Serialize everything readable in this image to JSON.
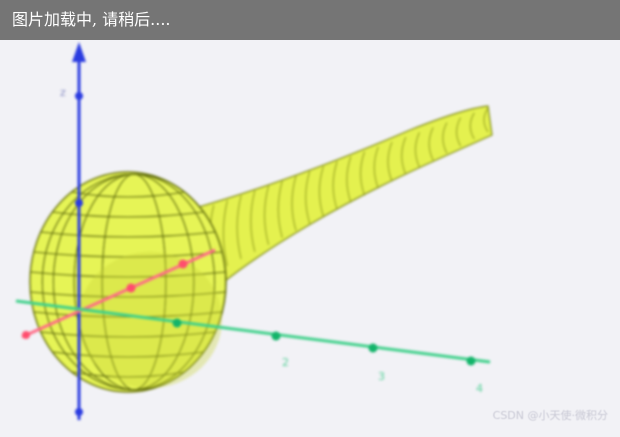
{
  "banner": {
    "text": "图片加载中, 请稍后...."
  },
  "axes": {
    "x_color": "#ff6680",
    "y_color": "#33cc77",
    "z_color": "#2233dd",
    "z_tick_label": "z",
    "y_tick_labels": [
      "2",
      "3",
      "4"
    ]
  },
  "surface": {
    "fill": "#e8f55a",
    "mesh": "#6f7a10"
  },
  "watermark": {
    "text": "CSDN @小天使·微积分"
  }
}
